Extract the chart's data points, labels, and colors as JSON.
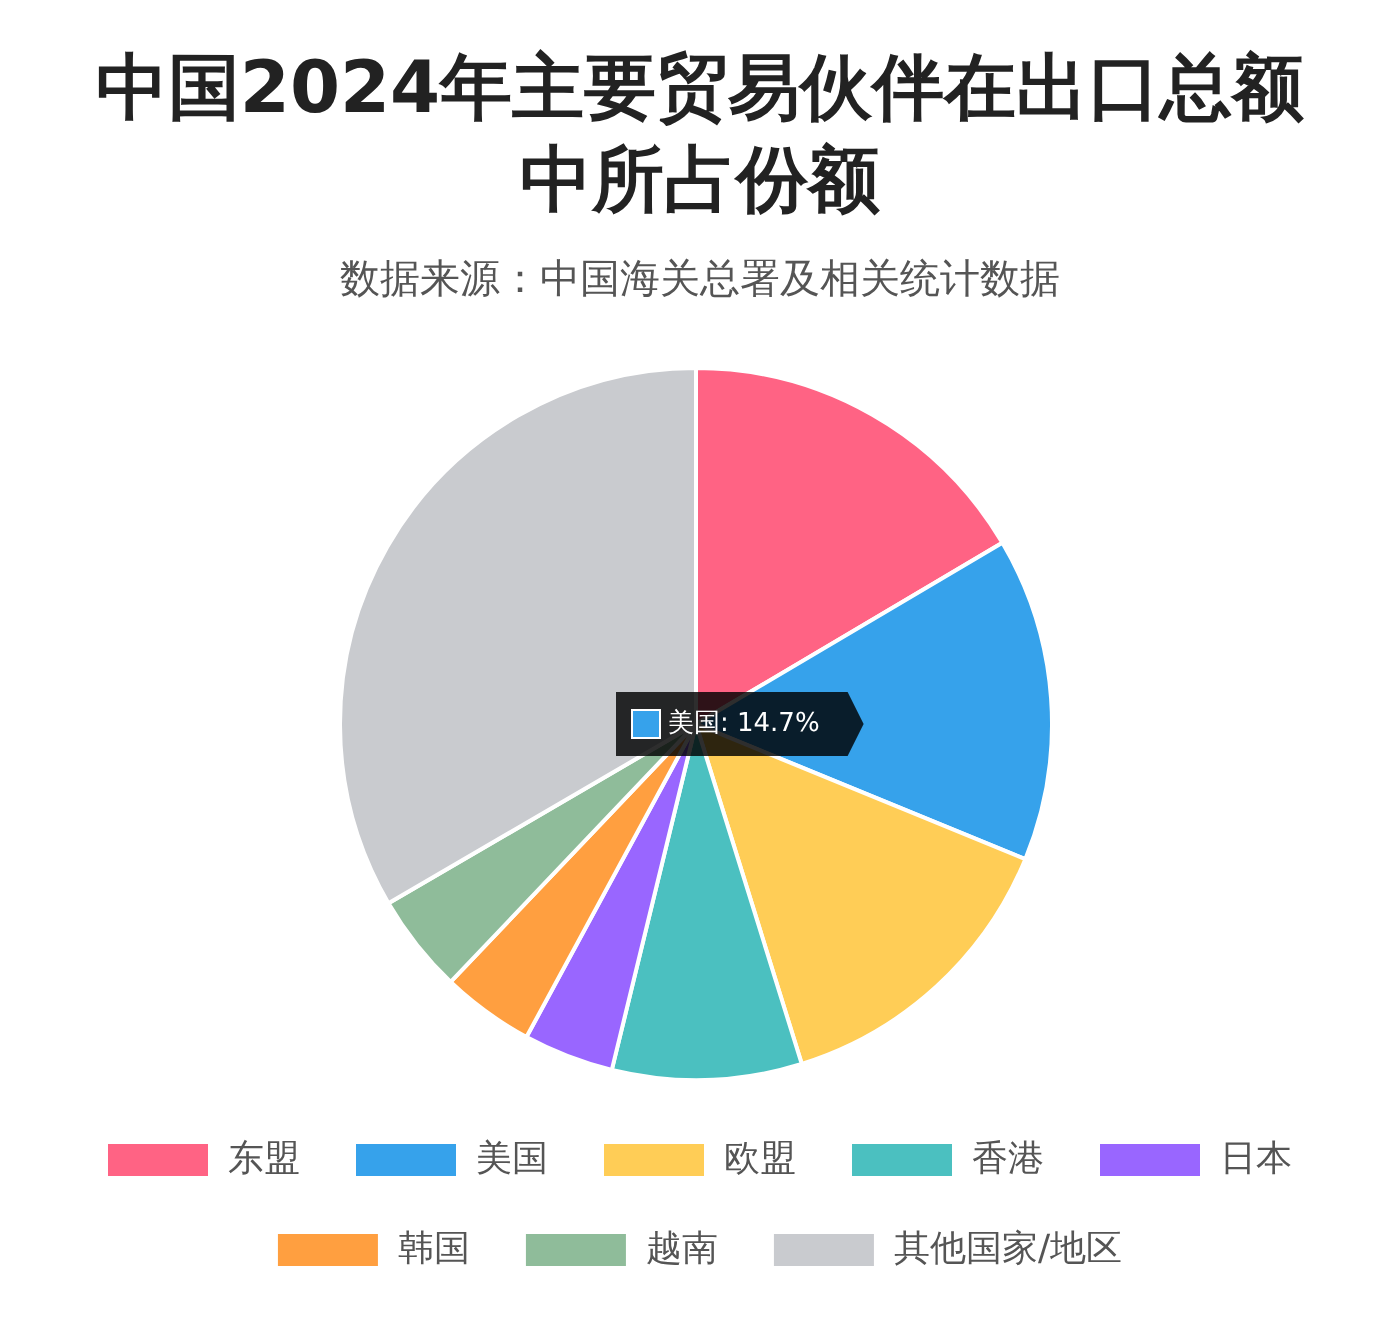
{
  "chart_data": {
    "type": "pie",
    "title": "中国2024年主要贸易伙伴在出口总额中所占份额",
    "subtitle": "数据来源：中国海关总署及相关统计数据",
    "categories": [
      "东盟",
      "美国",
      "欧盟",
      "香港",
      "日本",
      "韩国",
      "越南",
      "其他国家/地区"
    ],
    "values": [
      16.5,
      14.7,
      14.0,
      8.6,
      4.1,
      4.2,
      4.5,
      33.4
    ],
    "colors": [
      "#ff6384",
      "#36a2eb",
      "#ffcd56",
      "#4bc0c0",
      "#9966ff",
      "#ff9f40",
      "#8fbc9a",
      "#c9cbcf"
    ],
    "annotations": [
      "美国: 14.7%"
    ],
    "legend": "bottom"
  }
}
